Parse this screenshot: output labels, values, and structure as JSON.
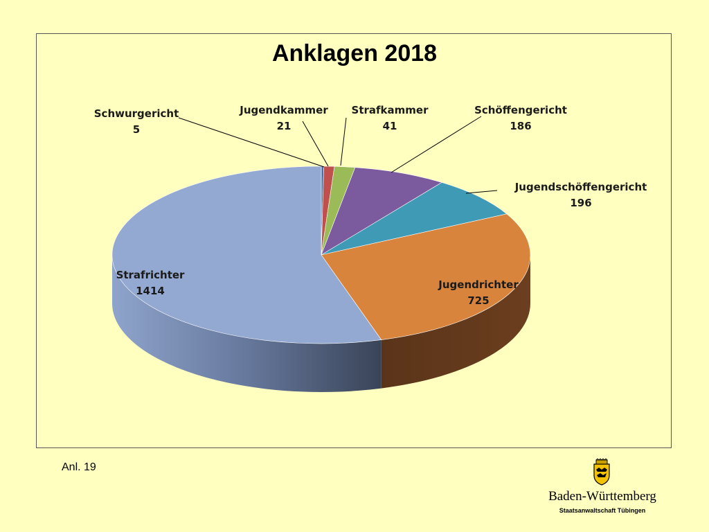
{
  "slide": {
    "footnote": "Anl. 19",
    "logo": {
      "name": "Baden-Württemberg",
      "subtitle": "Staatsanwaltschaft Tübingen"
    }
  },
  "chart_data": {
    "type": "pie",
    "title": "Anklagen 2018",
    "style": "3d",
    "slices": [
      {
        "label": "Schwurgericht",
        "value": 5,
        "color": "#4A6FA5"
      },
      {
        "label": "Jugendkammer",
        "value": 21,
        "color": "#C0504D"
      },
      {
        "label": "Strafkammer",
        "value": 41,
        "color": "#9BBB59"
      },
      {
        "label": "Schöffengericht",
        "value": 186,
        "color": "#7B5B9E"
      },
      {
        "label": "Jugendschöffengericht",
        "value": 196,
        "color": "#3F9AB5"
      },
      {
        "label": "Jugendrichter",
        "value": 725,
        "color": "#D9843D"
      },
      {
        "label": "Strafrichter",
        "value": 1414,
        "color": "#93A9D1"
      }
    ]
  }
}
